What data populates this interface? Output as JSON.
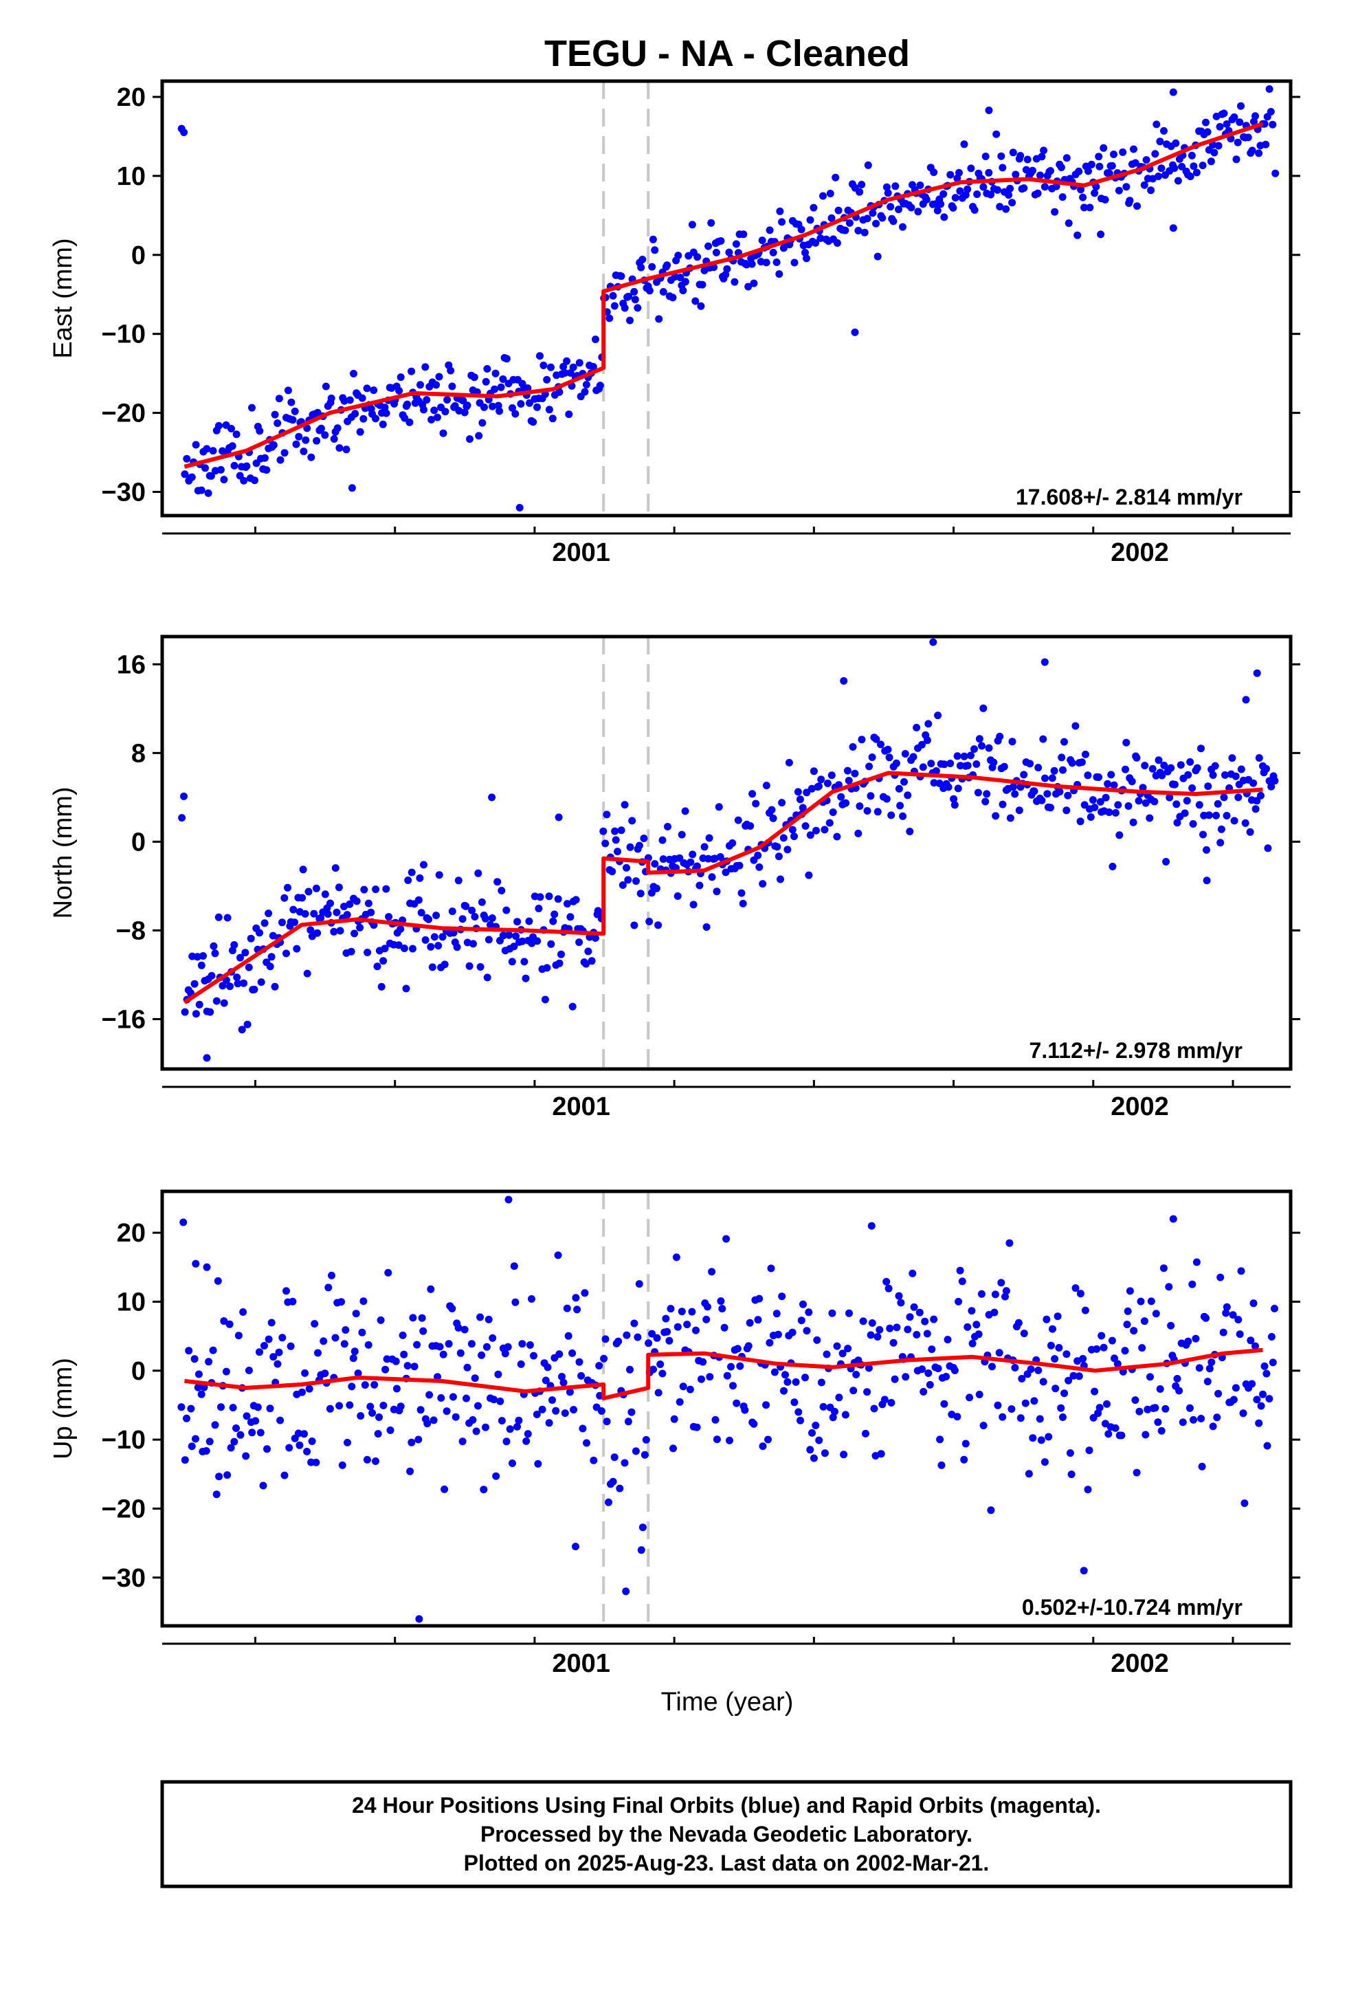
{
  "title": "TEGU  - NA - Cleaned",
  "x_axis_label": "Time (year)",
  "footer": {
    "line1": "24 Hour Positions Using Final Orbits (blue) and Rapid Orbits (magenta).",
    "line2": "Processed by the Nevada Geodetic Laboratory.",
    "line3": "Plotted on 2025-Aug-23. Last data on 2002-Mar-21."
  },
  "colors": {
    "final_orbits": "#0000ff",
    "model_fit": "#ff0000",
    "offset_lines": "#c8c8c8"
  },
  "chart_data": [
    {
      "type": "scatter",
      "ylabel": "East (mm)",
      "rate_label": "17.608+/- 2.814 mm/yr",
      "xlim": [
        2000.25,
        2002.27
      ],
      "ylim": [
        -33,
        22
      ],
      "yticks": [
        -30,
        -20,
        -10,
        0,
        10,
        20
      ],
      "xticks": [
        2001,
        2002
      ],
      "offsets": [
        2001.04,
        2001.12
      ],
      "noise": 2.2,
      "seed": 11,
      "outliers": [
        [
          2000.59,
          -29.5
        ],
        [
          2000.89,
          -32.0
        ],
        [
          2001.49,
          -9.8
        ],
        [
          2001.73,
          18.3
        ],
        [
          2002.06,
          20.6
        ],
        [
          2002.06,
          3.4
        ],
        [
          2001.93,
          2.6
        ]
      ],
      "model": [
        [
          2000.29,
          -26.8
        ],
        [
          2000.4,
          -24.8
        ],
        [
          2000.55,
          -20.0
        ],
        [
          2000.7,
          -17.5
        ],
        [
          2000.85,
          -17.9
        ],
        [
          2000.95,
          -17.0
        ],
        [
          2001.04,
          -14.3
        ],
        [
          2001.04,
          -4.6
        ],
        [
          2001.12,
          -3.0
        ],
        [
          2001.28,
          -0.3
        ],
        [
          2001.4,
          2.5
        ],
        [
          2001.55,
          7.0
        ],
        [
          2001.68,
          9.2
        ],
        [
          2001.8,
          9.6
        ],
        [
          2001.9,
          8.8
        ],
        [
          2002.0,
          10.8
        ],
        [
          2002.1,
          13.8
        ],
        [
          2002.22,
          16.6
        ]
      ]
    },
    {
      "type": "scatter",
      "ylabel": "North (mm)",
      "rate_label": "7.112+/- 2.978 mm/yr",
      "xlim": [
        2000.25,
        2002.27
      ],
      "ylim": [
        -20.5,
        18.5
      ],
      "yticks": [
        -16,
        -8,
        0,
        8,
        16
      ],
      "xticks": [
        2001,
        2002
      ],
      "offsets": [
        2001.04,
        2001.12
      ],
      "noise": 2.3,
      "seed": 23,
      "outliers": [
        [
          2000.33,
          -19.5
        ],
        [
          2000.84,
          4.0
        ],
        [
          2000.96,
          2.2
        ],
        [
          2001.47,
          14.5
        ],
        [
          2001.63,
          18.0
        ],
        [
          2001.83,
          16.2
        ],
        [
          2002.19,
          12.8
        ],
        [
          2002.21,
          15.2
        ],
        [
          2002.12,
          -3.5
        ]
      ],
      "model": [
        [
          2000.29,
          -14.5
        ],
        [
          2000.38,
          -11.5
        ],
        [
          2000.5,
          -7.5
        ],
        [
          2000.6,
          -7.0
        ],
        [
          2000.75,
          -7.8
        ],
        [
          2000.9,
          -8.0
        ],
        [
          2001.04,
          -8.3
        ],
        [
          2001.04,
          -1.5
        ],
        [
          2001.12,
          -1.8
        ],
        [
          2001.12,
          -2.8
        ],
        [
          2001.22,
          -2.6
        ],
        [
          2001.32,
          -0.5
        ],
        [
          2001.45,
          4.5
        ],
        [
          2001.55,
          6.2
        ],
        [
          2001.7,
          5.8
        ],
        [
          2001.85,
          5.0
        ],
        [
          2002.0,
          4.5
        ],
        [
          2002.1,
          4.3
        ],
        [
          2002.22,
          4.7
        ]
      ]
    },
    {
      "type": "scatter",
      "ylabel": "Up (mm)",
      "rate_label": "0.502+/-10.724 mm/yr",
      "xlim": [
        2000.25,
        2002.27
      ],
      "ylim": [
        -37,
        26
      ],
      "yticks": [
        -30,
        -20,
        -10,
        0,
        10,
        20
      ],
      "xticks": [
        2001,
        2002
      ],
      "offsets": [
        2001.04,
        2001.12
      ],
      "noise": 7.5,
      "seed": 37,
      "outliers": [
        [
          2000.31,
          15.5
        ],
        [
          2000.33,
          15.0
        ],
        [
          2000.35,
          13.0
        ],
        [
          2000.87,
          24.8
        ],
        [
          2000.71,
          -36.0
        ],
        [
          2001.08,
          -32.0
        ],
        [
          2000.99,
          -25.5
        ],
        [
          2001.9,
          -29.0
        ],
        [
          2001.52,
          21.0
        ],
        [
          2002.06,
          22.0
        ]
      ],
      "model": [
        [
          2000.29,
          -1.5
        ],
        [
          2000.4,
          -2.5
        ],
        [
          2000.5,
          -2.0
        ],
        [
          2000.6,
          -1.0
        ],
        [
          2000.75,
          -1.5
        ],
        [
          2000.9,
          -3.0
        ],
        [
          2001.04,
          -2.0
        ],
        [
          2001.04,
          -4.0
        ],
        [
          2001.12,
          -2.5
        ],
        [
          2001.12,
          2.3
        ],
        [
          2001.22,
          2.5
        ],
        [
          2001.35,
          1.0
        ],
        [
          2001.45,
          0.5
        ],
        [
          2001.58,
          1.5
        ],
        [
          2001.7,
          2.0
        ],
        [
          2001.82,
          1.0
        ],
        [
          2001.92,
          0.0
        ],
        [
          2002.05,
          1.0
        ],
        [
          2002.15,
          2.5
        ],
        [
          2002.22,
          3.0
        ]
      ]
    }
  ]
}
